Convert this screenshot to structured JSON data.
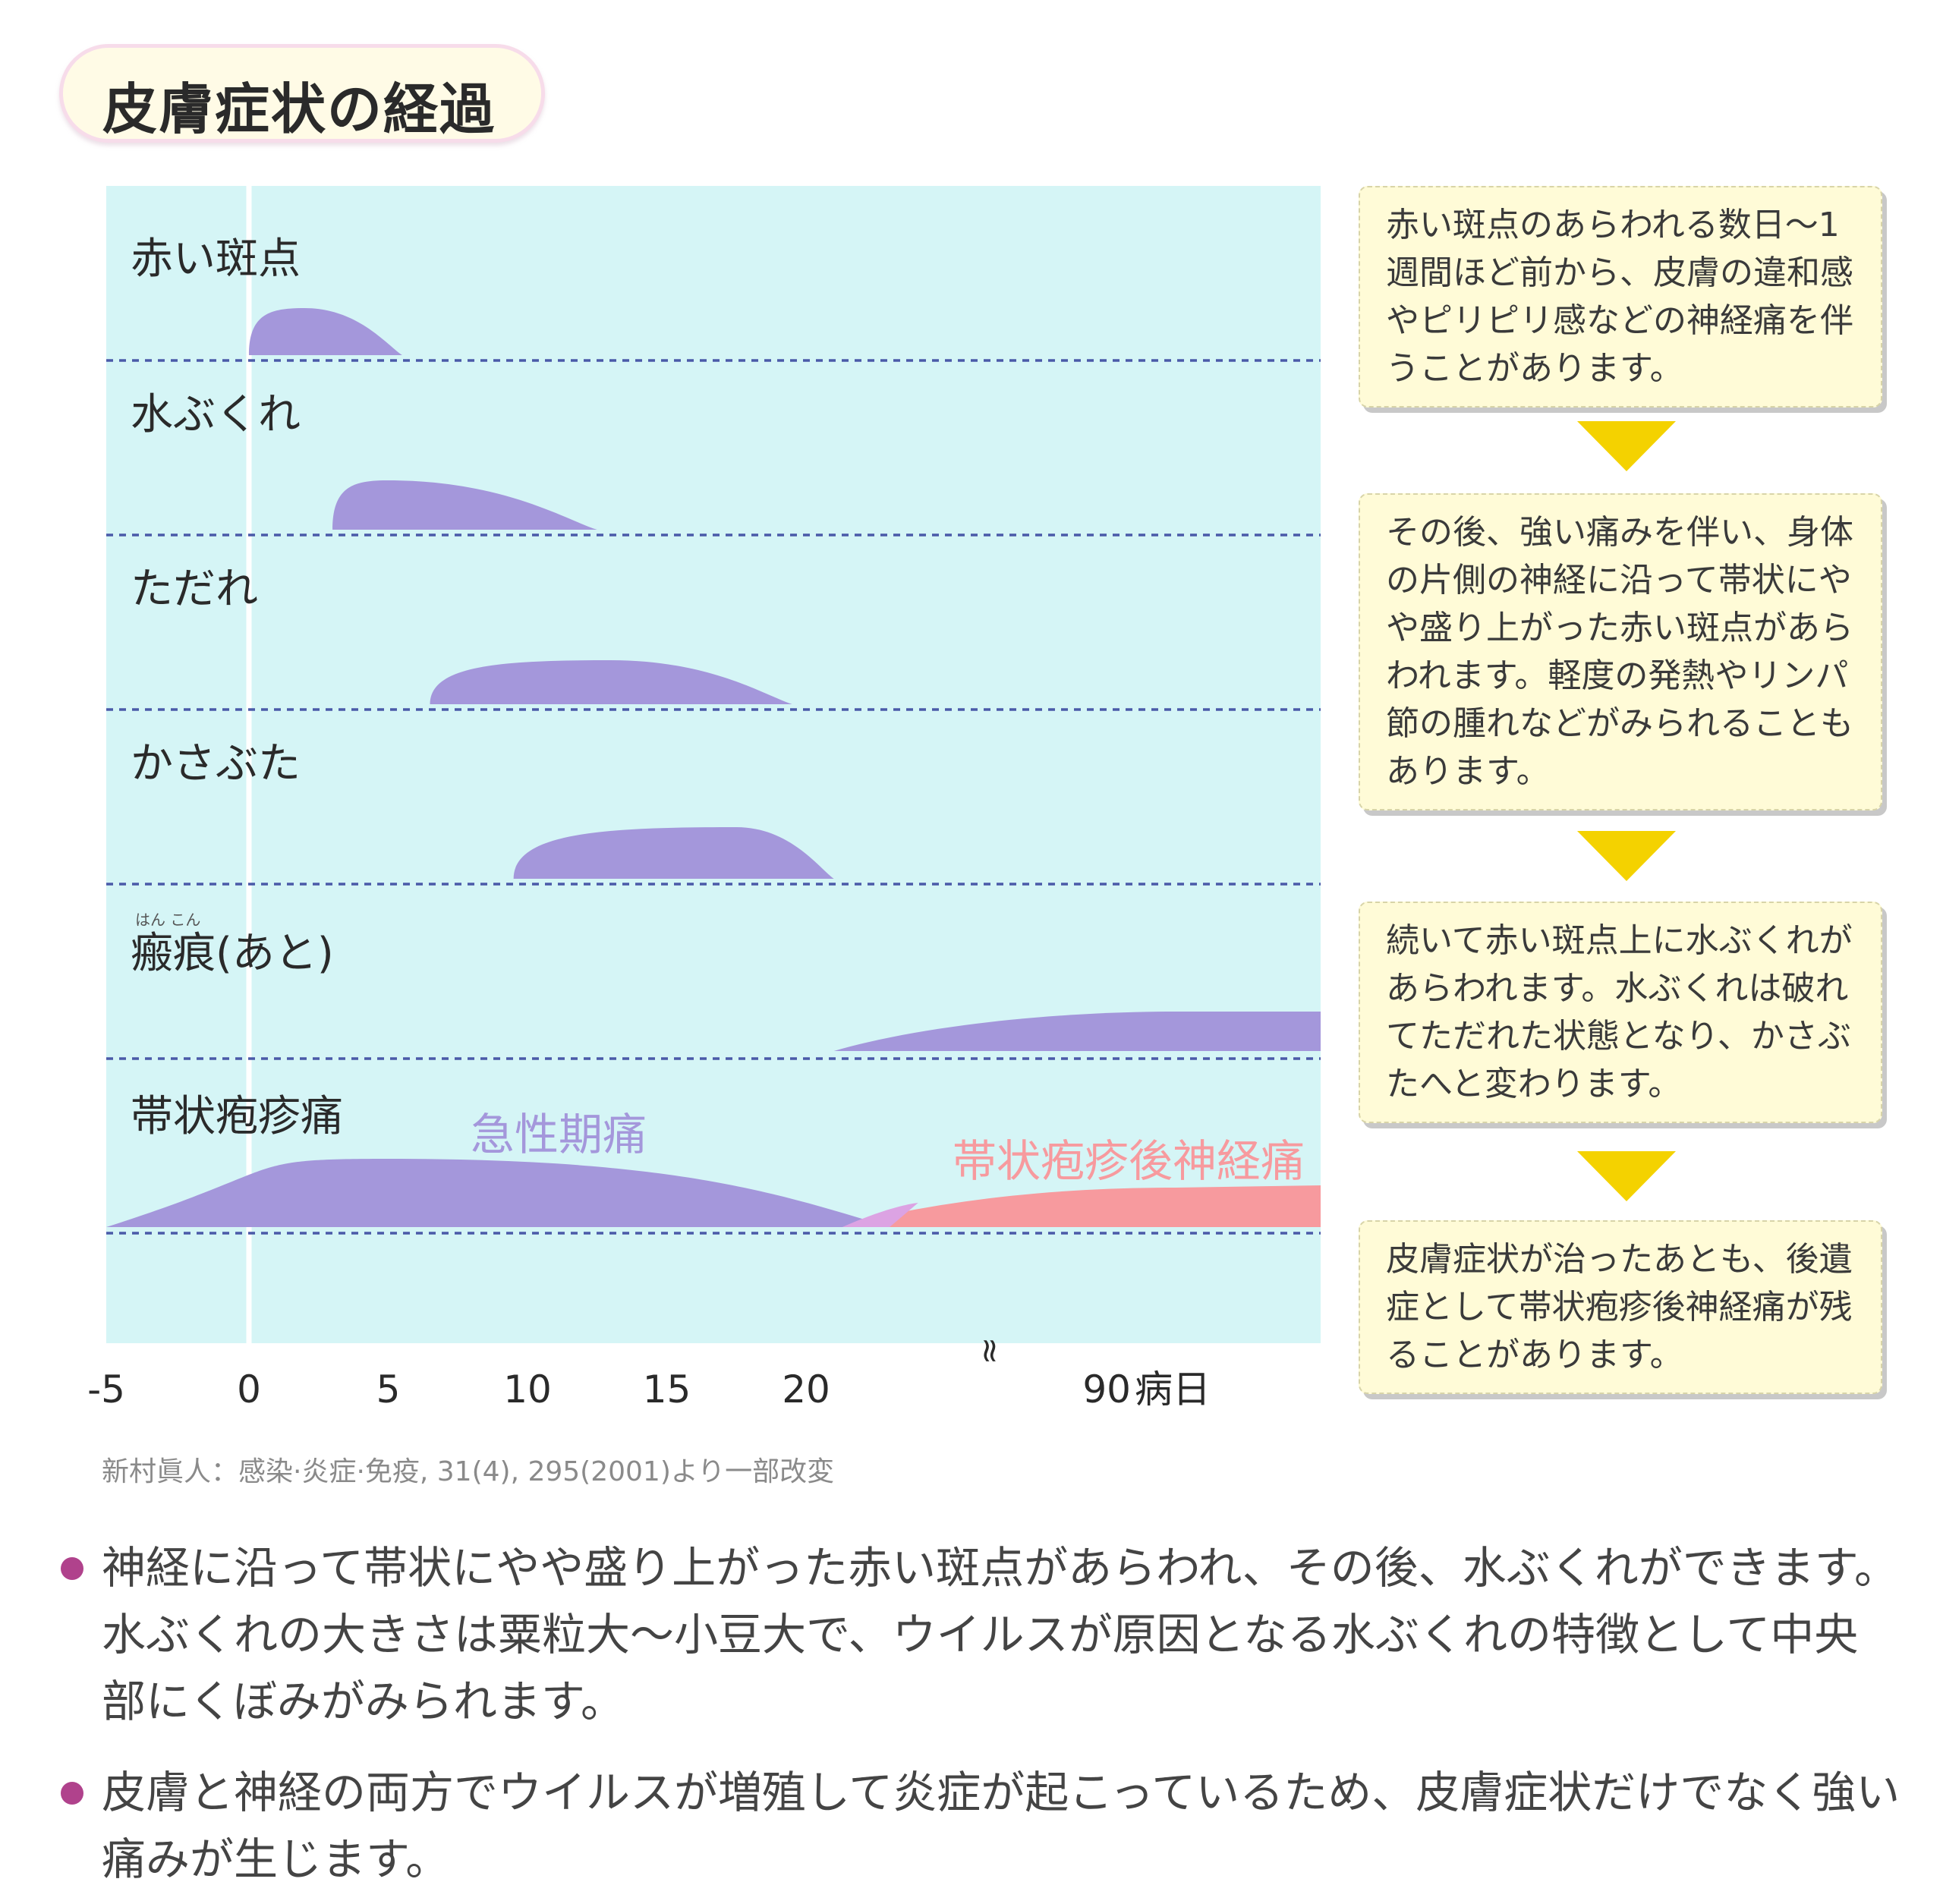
{
  "title": "皮膚症状の経過",
  "chart_data": {
    "type": "area",
    "xlabel": "病日",
    "x_ticks": [
      "-5",
      "0",
      "5",
      "10",
      "15",
      "20",
      "90"
    ],
    "axis_break_mark": "≈",
    "axis_break_between": [
      20,
      90
    ],
    "rows": [
      {
        "label": "赤い斑点",
        "start_day": 0,
        "peak_day": 2,
        "end_day": 5.5
      },
      {
        "label": "水ぶくれ",
        "start_day": 3,
        "peak_day": 5,
        "end_day": 12.5
      },
      {
        "label": "ただれ",
        "start_day": 6.5,
        "peak_day": 13,
        "end_day": 19.5
      },
      {
        "label": "かさぶた",
        "start_day": 9.5,
        "peak_day": 17.5,
        "end_day": 21
      },
      {
        "label": "瘢痕(あと)",
        "ruby": "はん こん",
        "start_day": 21,
        "end_day": 90,
        "continues": true
      },
      {
        "label": "帯状疱疹痛",
        "series": [
          {
            "name": "急性期痛",
            "start_day": -5,
            "peak_day": 5,
            "end_day": 23,
            "color": "#a497db"
          },
          {
            "name": "帯状疱疹後神経痛",
            "start_day": 21,
            "end_day": 90,
            "continues": true,
            "color": "#f79a9e"
          }
        ]
      }
    ],
    "colors": {
      "background": "#d5f5f6",
      "area": "#a497db",
      "pain_after": "#f79a9e",
      "overlap": "#dca3e3"
    }
  },
  "side_steps": [
    "赤い斑点のあらわれる数日～1週間ほど前から、皮膚の違和感やピリピリ感などの神経痛を伴うことがあります。",
    "その後、強い痛みを伴い、身体の片側の神経に沿って帯状にやや盛り上がった赤い斑点があらわれます。軽度の発熱やリンパ節の腫れなどがみられることもあります。",
    "続いて赤い斑点上に水ぶくれがあらわれます。水ぶくれは破れてただれた状態となり、かさぶたへと変わります。",
    "皮膚症状が治ったあとも、後遺症として帯状疱疹後神経痛が残ることがあります。"
  ],
  "source": "新村眞人：感染·炎症·免疫, 31(4), 295(2001)より一部改変",
  "bullets": [
    "神経に沿って帯状にやや盛り上がった赤い斑点があらわれ、その後、水ぶくれができます。水ぶくれの大きさは粟粒大～小豆大で、ウイルスが原因となる水ぶくれの特徴として中央部にくぼみがみられます。",
    "皮膚と神経の両方でウイルスが増殖して炎症が起こっているため、皮膚症状だけでなく強い痛みが生じます。"
  ]
}
